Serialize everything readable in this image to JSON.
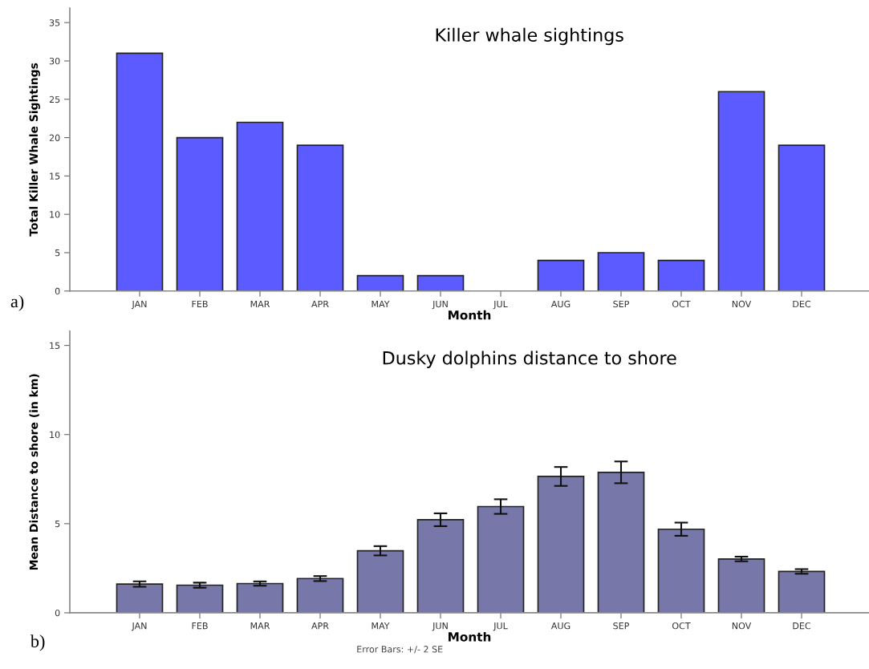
{
  "chart_data": [
    {
      "type": "bar",
      "title": "Killer whale sightings",
      "xlabel": "Month",
      "ylabel": "Total Killer Whale Sightings",
      "categories": [
        "JAN",
        "FEB",
        "MAR",
        "APR",
        "MAY",
        "JUN",
        "JUL",
        "AUG",
        "SEP",
        "OCT",
        "NOV",
        "DEC"
      ],
      "values": [
        31,
        20,
        22,
        19,
        2,
        2,
        0,
        4,
        5,
        4,
        26,
        19
      ],
      "color": "#5b5bff",
      "ylim": [
        0,
        36.9
      ],
      "yticks": [
        0,
        5,
        10,
        15,
        20,
        25,
        30,
        35
      ],
      "grid": false,
      "legend": false,
      "annotations": [
        "a)"
      ]
    },
    {
      "type": "bar",
      "title": "Dusky dolphins distance to shore",
      "xlabel": "Month",
      "ylabel": "Mean Distance to shore (in km)",
      "categories": [
        "JAN",
        "FEB",
        "MAR",
        "APR",
        "MAY",
        "JUN",
        "JUL",
        "AUG",
        "SEP",
        "OCT",
        "NOV",
        "DEC"
      ],
      "values": [
        1.61,
        1.55,
        1.64,
        1.92,
        3.48,
        5.22,
        5.96,
        7.65,
        7.88,
        4.69,
        3.02,
        2.32
      ],
      "errors": [
        0.15,
        0.14,
        0.12,
        0.14,
        0.26,
        0.36,
        0.41,
        0.53,
        0.61,
        0.37,
        0.13,
        0.13
      ],
      "color": "#7777aa",
      "ylim": [
        0,
        15.8
      ],
      "yticks": [
        0,
        5,
        10,
        15
      ],
      "grid": false,
      "legend": false,
      "annotations": [
        "b)",
        "Error Bars: +/- 2 SE"
      ]
    }
  ]
}
